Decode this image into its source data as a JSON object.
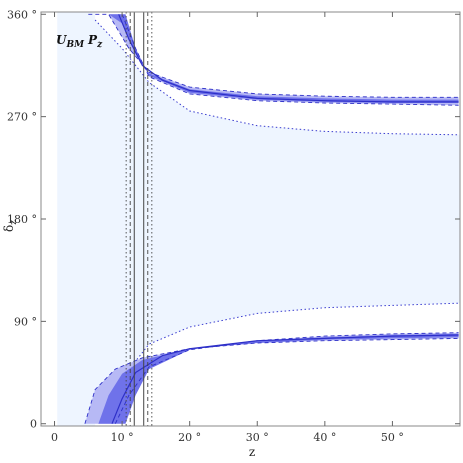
{
  "chart_data": {
    "type": "area",
    "plot_label": {
      "main": "U",
      "sub": "BM",
      "tail": "P",
      "tail_sub": "z"
    },
    "xlabel": "z",
    "ylabel": "δ",
    "ylabel_sub": "z",
    "xlim": [
      -2,
      60
    ],
    "ylim": [
      -2,
      362
    ],
    "x_ticks": [
      {
        "value": 0,
        "label": "0"
      },
      {
        "value": 10,
        "label": "10 °"
      },
      {
        "value": 20,
        "label": "20 °"
      },
      {
        "value": 30,
        "label": "30 °"
      },
      {
        "value": 40,
        "label": "40 °"
      },
      {
        "value": 50,
        "label": "50 °"
      }
    ],
    "y_ticks": [
      {
        "value": 0,
        "label": "0"
      },
      {
        "value": 90,
        "label": "90 °"
      },
      {
        "value": 180,
        "label": "180 °"
      },
      {
        "value": 270,
        "label": "270 °"
      },
      {
        "value": 360,
        "label": "360 °"
      }
    ],
    "colors": {
      "light_fill": "#eef5ff",
      "band_outer": "#b7b9f5",
      "band_inner": "#6f72ea",
      "band_line": "#2d2fc8",
      "dotted": "#3a3ccf",
      "vertical_lines": "#444444"
    },
    "bands": {
      "light_region": {
        "upper": {
          "x": [
            6,
            10,
            14,
            20,
            30,
            40,
            50,
            59.8
          ],
          "y": [
            5,
            40,
            70,
            85,
            97,
            102,
            104,
            106
          ]
        },
        "lower": {
          "x": [
            6,
            10,
            14,
            20,
            30,
            40,
            50,
            59.8
          ],
          "y": [
            355,
            330,
            300,
            275,
            262,
            257,
            255,
            254
          ]
        }
      },
      "upper_band": {
        "outer_top": {
          "x": [
            5,
            8,
            11,
            14,
            20,
            30,
            40,
            50,
            59.8
          ],
          "y": [
            360,
            360,
            330,
            309,
            296,
            290,
            288,
            287,
            287
          ]
        },
        "outer_bottom": {
          "x": [
            10,
            12,
            14,
            20,
            30,
            40,
            50,
            59.8
          ],
          "y": [
            360,
            330,
            305,
            290,
            284,
            282,
            281,
            280
          ]
        },
        "inner_top": {
          "x": [
            8,
            10,
            12,
            14,
            20,
            30,
            40,
            50,
            59.8
          ],
          "y": [
            360,
            352,
            325,
            308,
            294,
            288,
            286,
            285,
            285
          ]
        },
        "inner_bottom": {
          "x": [
            10.5,
            12,
            14,
            20,
            30,
            40,
            50,
            59.8
          ],
          "y": [
            360,
            330,
            306,
            291,
            285,
            283,
            282,
            282
          ]
        },
        "center": {
          "x": [
            9.5,
            11,
            13,
            16,
            20,
            30,
            40,
            50,
            59.8
          ],
          "y": [
            360,
            338,
            315,
            302,
            293,
            286,
            284,
            283,
            283
          ]
        }
      },
      "lower_band": {
        "outer_top": {
          "x": [
            9,
            11,
            14,
            20,
            30,
            40,
            50,
            59.8
          ],
          "y": [
            0,
            25,
            50,
            65,
            73,
            77,
            79,
            80
          ]
        },
        "outer_bottom": {
          "x": [
            4.5,
            6,
            9,
            13,
            20,
            30,
            40,
            50,
            59.8
          ],
          "y": [
            0,
            30,
            48,
            58,
            66,
            71,
            73,
            74,
            75
          ]
        },
        "inner_top": {
          "x": [
            10.5,
            12,
            14,
            20,
            30,
            40,
            50,
            59.8
          ],
          "y": [
            0,
            25,
            48,
            65,
            73,
            76,
            78,
            79
          ]
        },
        "inner_bottom": {
          "x": [
            6.5,
            8,
            10,
            13,
            20,
            30,
            40,
            50,
            59.8
          ],
          "y": [
            0,
            25,
            44,
            56,
            66,
            71,
            74,
            75,
            76
          ]
        },
        "center": {
          "x": [
            8.5,
            10,
            12,
            16,
            20,
            30,
            40,
            50,
            59.8
          ],
          "y": [
            0,
            22,
            45,
            60,
            66,
            73,
            75,
            77,
            78
          ]
        }
      },
      "vertical_lines": {
        "solid": [
          11.8,
          13.2
        ],
        "dashed": [
          11.2,
          13.8
        ],
        "dotted": [
          10.6,
          14.4
        ]
      }
    }
  }
}
